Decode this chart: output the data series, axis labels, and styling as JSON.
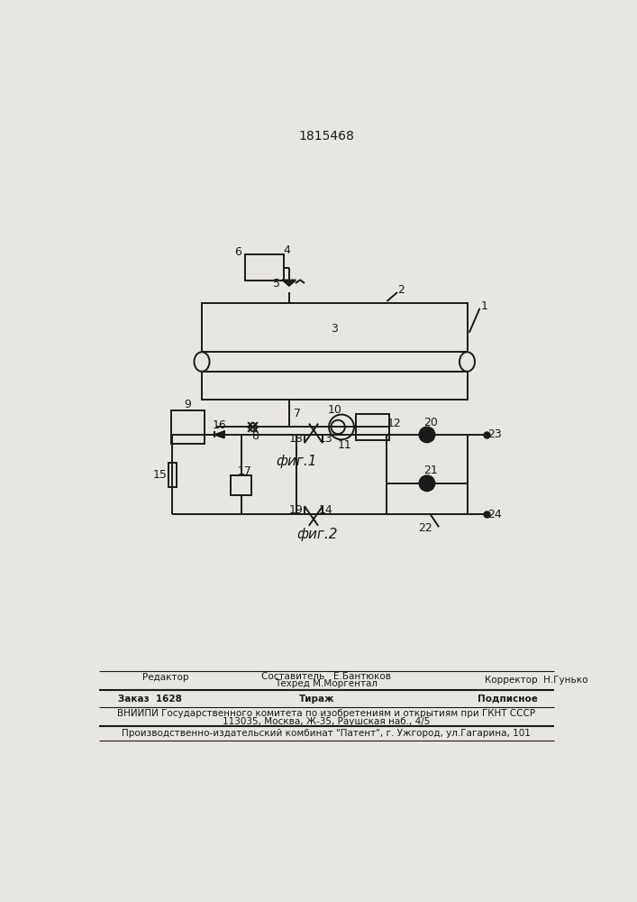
{
  "patent_number": "1815468",
  "bg_color": "#e8e6e0",
  "line_color": "#1a1a1a",
  "fig1_label": "фиг.1",
  "fig2_label": "фиг.2",
  "footer_editor": "Редактор",
  "footer_comp1": "Составитель   Е.Бантюков",
  "footer_comp2": "Техред М.Моргентал",
  "footer_corr": "Корректор  Н.Гунько",
  "footer_order": "Заказ  1628",
  "footer_tir": "Тираж",
  "footer_sub": "Подписное",
  "footer_vn1": "ВНИИПИ Государственного комитета по изобретениям и открытиям при ГКНТ СССР",
  "footer_vn2": "113035, Москва, Ж-35, Раушская наб., 4/5",
  "footer_prod": "Производственно-издательский комбинат \"Патент\", г. Ужгород, ул.Гагарина, 101"
}
